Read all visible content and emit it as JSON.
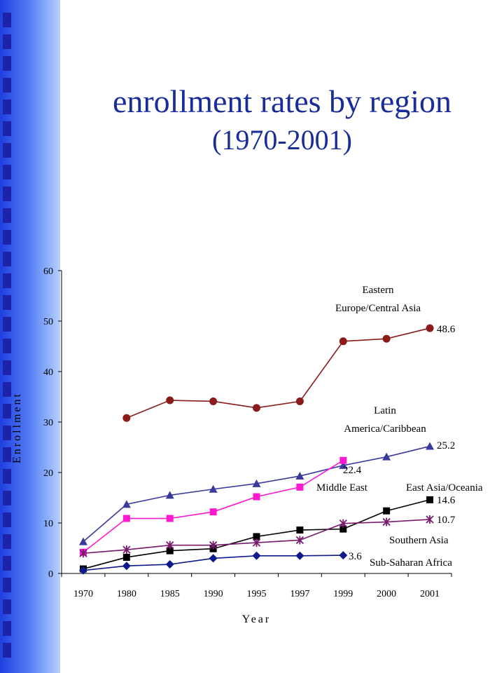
{
  "title_line1": "enrollment rates  by region",
  "title_line2": "(1970-2001)",
  "colors": {
    "band_dark": "#1f3fe0",
    "band_light": "#b9d0fd",
    "bullet": "#1e22a8",
    "title": "#1a2c9a"
  },
  "chart_data": {
    "type": "line",
    "xlabel": "Year",
    "ylabel": "Enrollment",
    "ylim": [
      0,
      60
    ],
    "yticks": [
      "0",
      "10",
      "20",
      "30",
      "40",
      "50",
      "60"
    ],
    "categories": [
      "1970",
      "1980",
      "1985",
      "1990",
      "1995",
      "1997",
      "1999",
      "2000",
      "2001"
    ],
    "grid": false,
    "series": [
      {
        "id": "eeca",
        "color": "#8b1a1a",
        "marker": "circle",
        "values": [
          null,
          30.8,
          34.3,
          34.1,
          32.8,
          34.1,
          46.0,
          46.5,
          48.6
        ],
        "label_lines": [
          "Eastern",
          "Europe/Central Asia"
        ],
        "end_value": "48.6"
      },
      {
        "id": "lac",
        "color": "#3a3a9c",
        "marker": "triangle",
        "values": [
          6.3,
          13.7,
          15.5,
          16.7,
          17.8,
          19.3,
          21.4,
          23.1,
          25.2
        ],
        "label_lines": [
          "Latin",
          "America/Caribbean"
        ],
        "end_value": "25.2"
      },
      {
        "id": "me",
        "color": "#ff1ad1",
        "marker": "square",
        "values": [
          4.2,
          10.9,
          10.9,
          12.2,
          15.2,
          17.1,
          22.4,
          null,
          null
        ],
        "label_lines": [
          "Middle East"
        ],
        "end_value": "22.4"
      },
      {
        "id": "eao",
        "color": "#000000",
        "marker": "square",
        "values": [
          0.9,
          3.2,
          4.5,
          4.9,
          7.3,
          8.6,
          8.8,
          12.4,
          14.6
        ],
        "label_lines": [
          "East Asia/Oceania"
        ],
        "end_value": "14.6"
      },
      {
        "id": "sa",
        "color": "#7a1a6e",
        "marker": "star",
        "values": [
          4.0,
          4.7,
          5.6,
          5.6,
          6.1,
          6.6,
          9.9,
          10.2,
          10.7
        ],
        "label_lines": [
          "Southern Asia"
        ],
        "end_value": "10.7"
      },
      {
        "id": "ssa",
        "color": "#0c1a8c",
        "marker": "diamond",
        "values": [
          0.6,
          1.5,
          1.8,
          3.0,
          3.5,
          3.5,
          3.6,
          null,
          null
        ],
        "label_lines": [
          "Sub-Saharan Africa"
        ],
        "end_value": "3.6"
      }
    ]
  }
}
